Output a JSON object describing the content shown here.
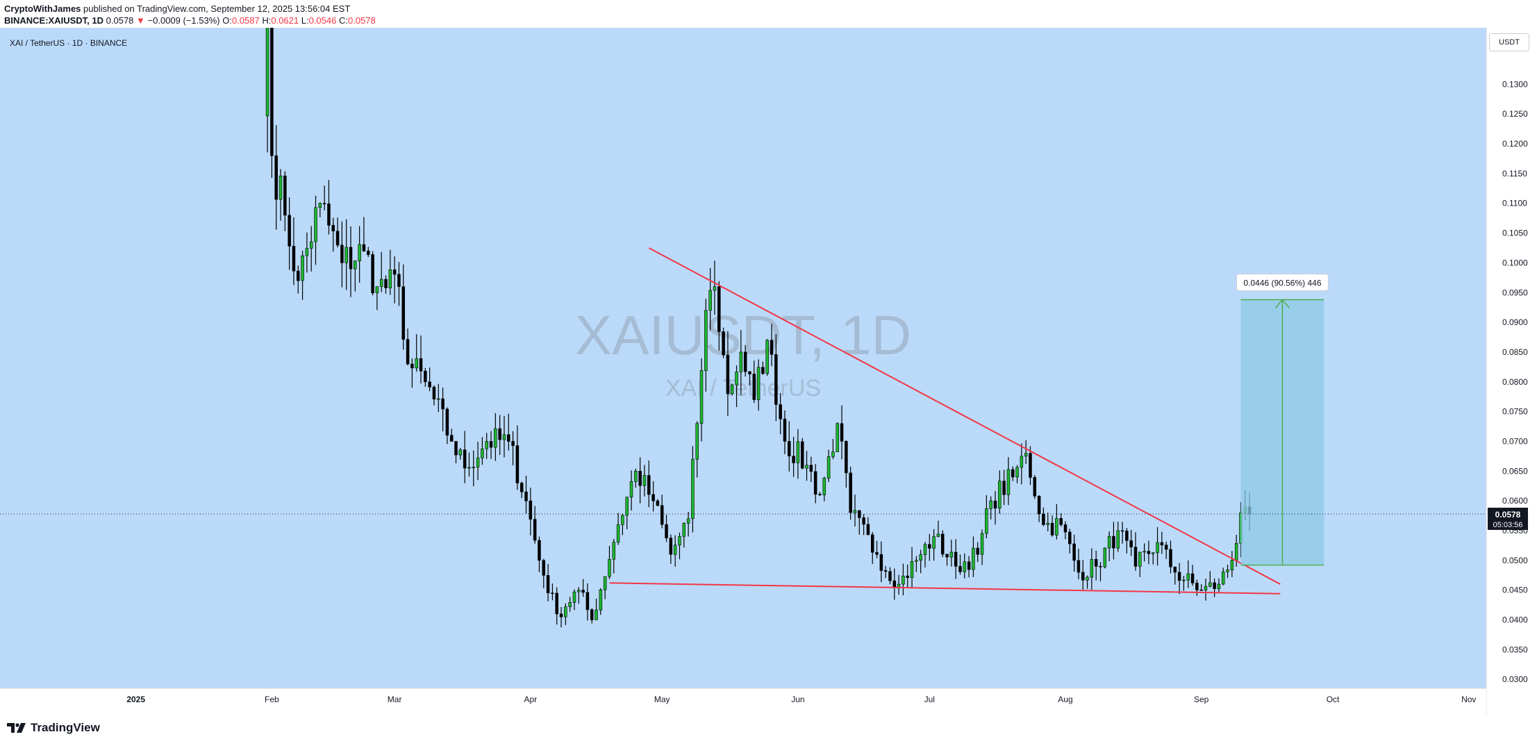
{
  "header": {
    "author": "CryptoWithJames",
    "published_text": "published on TradingView.com, September 12, 2025 13:56:04 EST",
    "symbol": "BINANCE:XAIUSDT, 1D",
    "last": "0.0578",
    "change_arrow": "▼",
    "change": "−0.0009 (−1.53%)",
    "o_label": "O:",
    "o_value": "0.0587",
    "h_label": "H:",
    "h_value": "0.0621",
    "l_label": "L:",
    "l_value": "0.0546",
    "c_label": "C:",
    "c_value": "0.0578"
  },
  "chart_title": "XAI / TetherUS · 1D · BINANCE",
  "currency_button": "USDT",
  "watermark": {
    "line1": "XAIUSDT, 1D",
    "line2": "XAI / TetherUS"
  },
  "price_label": {
    "value": "0.0578",
    "countdown": "05:03:56"
  },
  "measure_label": "0.0446 (90.56%) 446",
  "footer": {
    "logo_icon": "tradingview-logo-icon",
    "logo_text": "TradingView"
  },
  "colors": {
    "background": "#bbdafa",
    "up": "#26a69a",
    "up_body": "#1db72f",
    "down": "#000000",
    "trendline": "#f23645",
    "target_fill": "#8ecae6",
    "target_line": "#4caf50"
  },
  "chart_data": {
    "type": "candlestick",
    "title": "XAI / TetherUS · 1D · BINANCE",
    "x_axis": {
      "type": "date",
      "range": [
        "2024-12-01",
        "2025-11-05"
      ],
      "tick_labels": [
        {
          "label": "2025",
          "date": "2025-01-01"
        },
        {
          "label": "Feb",
          "date": "2025-02-01"
        },
        {
          "label": "Mar",
          "date": "2025-03-01"
        },
        {
          "label": "Apr",
          "date": "2025-04-01"
        },
        {
          "label": "May",
          "date": "2025-05-01"
        },
        {
          "label": "Jun",
          "date": "2025-06-01"
        },
        {
          "label": "Jul",
          "date": "2025-07-01"
        },
        {
          "label": "Aug",
          "date": "2025-08-01"
        },
        {
          "label": "Sep",
          "date": "2025-09-01"
        },
        {
          "label": "Oct",
          "date": "2025-10-01"
        },
        {
          "label": "Nov",
          "date": "2025-11-01"
        }
      ]
    },
    "y_axis": {
      "scale": "linear",
      "range": [
        0.0285,
        0.1395
      ],
      "tick_labels": [
        "0.0300",
        "0.0350",
        "0.0400",
        "0.0450",
        "0.0500",
        "0.0550",
        "0.0600",
        "0.0650",
        "0.0700",
        "0.0750",
        "0.0800",
        "0.0850",
        "0.0900",
        "0.0950",
        "0.1000",
        "0.1050",
        "0.1100",
        "0.1150",
        "0.1200",
        "0.1250",
        "0.1300"
      ]
    },
    "last_price": 0.0578,
    "series": [
      {
        "kind": "close_path_daily",
        "start_date": "2025-01-31",
        "end_date": "2025-09-12",
        "anchors": [
          [
            "2025-01-31",
            0.145
          ],
          [
            "2025-02-01",
            0.118
          ],
          [
            "2025-02-04",
            0.108
          ],
          [
            "2025-02-07",
            0.097
          ],
          [
            "2025-02-12",
            0.11
          ],
          [
            "2025-02-17",
            0.1
          ],
          [
            "2025-02-22",
            0.102
          ],
          [
            "2025-02-25",
            0.096
          ],
          [
            "2025-03-02",
            0.096
          ],
          [
            "2025-03-04",
            0.083
          ],
          [
            "2025-03-08",
            0.08
          ],
          [
            "2025-03-14",
            0.07
          ],
          [
            "2025-03-17",
            0.0655
          ],
          [
            "2025-03-22",
            0.07
          ],
          [
            "2025-03-27",
            0.07
          ],
          [
            "2025-03-31",
            0.06
          ],
          [
            "2025-04-03",
            0.05
          ],
          [
            "2025-04-07",
            0.041
          ],
          [
            "2025-04-12",
            0.045
          ],
          [
            "2025-04-15",
            0.04
          ],
          [
            "2025-04-21",
            0.056
          ],
          [
            "2025-04-25",
            0.065
          ],
          [
            "2025-04-29",
            0.06
          ],
          [
            "2025-05-03",
            0.051
          ],
          [
            "2025-05-07",
            0.057
          ],
          [
            "2025-05-09",
            0.073
          ],
          [
            "2025-05-11",
            0.092
          ],
          [
            "2025-05-13",
            0.096
          ],
          [
            "2025-05-16",
            0.078
          ],
          [
            "2025-05-19",
            0.085
          ],
          [
            "2025-05-22",
            0.077
          ],
          [
            "2025-05-25",
            0.087
          ],
          [
            "2025-05-29",
            0.07
          ],
          [
            "2025-06-03",
            0.066
          ],
          [
            "2025-06-06",
            0.061
          ],
          [
            "2025-06-10",
            0.073
          ],
          [
            "2025-06-13",
            0.058
          ],
          [
            "2025-06-19",
            0.051
          ],
          [
            "2025-06-24",
            0.046
          ],
          [
            "2025-06-28",
            0.05
          ],
          [
            "2025-07-02",
            0.054
          ],
          [
            "2025-07-07",
            0.049
          ],
          [
            "2025-07-12",
            0.051
          ],
          [
            "2025-07-15",
            0.06
          ],
          [
            "2025-07-20",
            0.064
          ],
          [
            "2025-07-23",
            0.068
          ],
          [
            "2025-07-27",
            0.056
          ],
          [
            "2025-07-31",
            0.056
          ],
          [
            "2025-08-04",
            0.048
          ],
          [
            "2025-08-08",
            0.049
          ],
          [
            "2025-08-13",
            0.055
          ],
          [
            "2025-08-17",
            0.049
          ],
          [
            "2025-08-22",
            0.053
          ],
          [
            "2025-08-26",
            0.048
          ],
          [
            "2025-09-01",
            0.045
          ],
          [
            "2025-09-05",
            0.046
          ],
          [
            "2025-09-08",
            0.05
          ],
          [
            "2025-09-10",
            0.058
          ],
          [
            "2025-09-11",
            0.059
          ],
          [
            "2025-09-12",
            0.0578
          ]
        ]
      }
    ],
    "drawings": [
      {
        "kind": "descending_trendline",
        "from": [
          "2025-04-28",
          0.1025
        ],
        "to": [
          "2025-09-19",
          0.046
        ]
      },
      {
        "kind": "support_line",
        "from": [
          "2025-04-19",
          0.0462
        ],
        "to": [
          "2025-09-19",
          0.0444
        ]
      },
      {
        "kind": "price_range_target",
        "from_date": "2025-09-10",
        "to_date": "2025-09-29",
        "from_price": 0.0492,
        "to_price": 0.0938,
        "label": "0.0446 (90.56%) 446"
      }
    ]
  }
}
